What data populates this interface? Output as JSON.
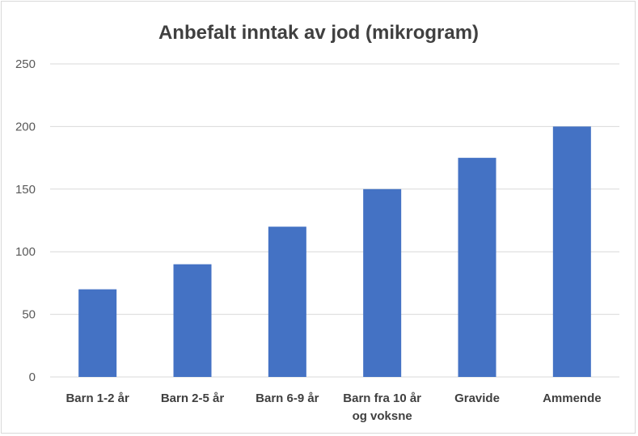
{
  "chart_data": {
    "type": "bar",
    "title": "Anbefalt inntak av jod (mikrogram)",
    "xlabel": "",
    "ylabel": "",
    "categories": [
      "Barn 1-2 år",
      "Barn 2-5 år",
      "Barn 6-9 år",
      "Barn fra 10 år og voksne",
      "Gravide",
      "Ammende"
    ],
    "category_lines": [
      [
        "Barn 1-2 år"
      ],
      [
        "Barn 2-5 år"
      ],
      [
        "Barn 6-9 år"
      ],
      [
        "Barn fra 10 år",
        "og voksne"
      ],
      [
        "Gravide"
      ],
      [
        "Ammende"
      ]
    ],
    "values": [
      70,
      90,
      120,
      150,
      175,
      200
    ],
    "ylim": [
      0,
      250
    ],
    "yticks": [
      0,
      50,
      100,
      150,
      200,
      250
    ],
    "grid": true,
    "legend": "none",
    "bar_color": "#4472c4",
    "grid_color": "#d9d9d9"
  }
}
